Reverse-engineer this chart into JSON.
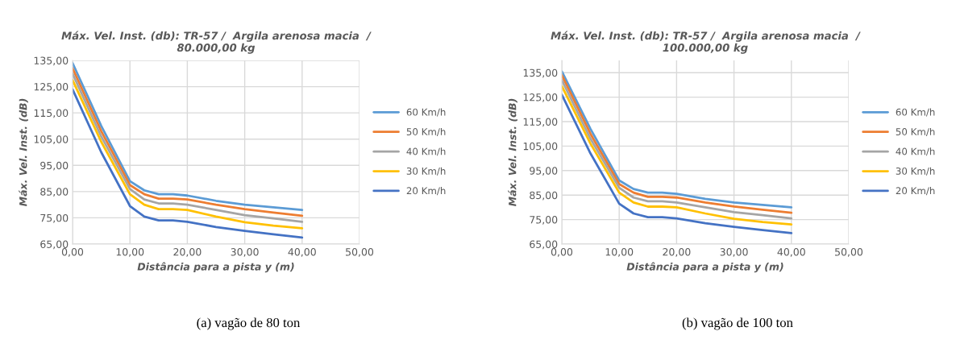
{
  "chart_data": [
    {
      "type": "line",
      "title": "Máx. Vel. Inst. (db): TR-57 /  Argila arenosa macia  /\n80.000,00 kg",
      "xlabel": "Distância para a pista y (m)",
      "ylabel": "Máx. Vel. Inst. (dB)",
      "x": [
        0,
        5,
        10,
        12.5,
        15,
        17.5,
        20,
        25,
        30,
        35,
        40
      ],
      "series": [
        {
          "name": "60 Km/h",
          "color": "#5b9bd5",
          "values": [
            134,
            110,
            89,
            85.5,
            84,
            84,
            83.5,
            81.5,
            80,
            79,
            78
          ]
        },
        {
          "name": "50 Km/h",
          "color": "#ed7d31",
          "values": [
            132,
            108,
            87.5,
            84,
            82.3,
            82.3,
            82,
            80,
            78.3,
            77,
            75.8
          ]
        },
        {
          "name": "40 Km/h",
          "color": "#a5a5a5",
          "values": [
            130,
            106,
            86,
            82,
            80.5,
            80.5,
            80,
            78,
            76,
            74.8,
            73.5
          ]
        },
        {
          "name": "30 Km/h",
          "color": "#ffc000",
          "values": [
            127.5,
            104,
            84,
            80,
            78.3,
            78.3,
            78,
            75.5,
            73.3,
            72,
            71
          ]
        },
        {
          "name": "20 Km/h",
          "color": "#4472c4",
          "values": [
            124,
            100,
            79.5,
            75.5,
            74,
            74,
            73.5,
            71.5,
            70,
            68.7,
            67.5
          ]
        }
      ],
      "xlim": [
        0,
        50
      ],
      "xticks": [
        {
          "value": 0,
          "label": "0,00"
        },
        {
          "value": 10,
          "label": "10,00"
        },
        {
          "value": 20,
          "label": "20,00"
        },
        {
          "value": 30,
          "label": "30,00"
        },
        {
          "value": 40,
          "label": "40,00"
        },
        {
          "value": 50,
          "label": "50,00"
        }
      ],
      "ylim": [
        65,
        135
      ],
      "yticks": [
        {
          "value": 65,
          "label": "65,00"
        },
        {
          "value": 75,
          "label": "75,00"
        },
        {
          "value": 85,
          "label": "85,00"
        },
        {
          "value": 95,
          "label": "95,00"
        },
        {
          "value": 105,
          "label": "105,00"
        },
        {
          "value": 115,
          "label": "115,00"
        },
        {
          "value": 125,
          "label": "125,00"
        },
        {
          "value": 135,
          "label": "135,00"
        }
      ],
      "grid": true,
      "legend": "right",
      "marker": "none",
      "line_style": "solid",
      "annotations": [
        "(a) vagão de 80 ton"
      ]
    },
    {
      "type": "line",
      "title": "Máx. Vel. Inst. (db): TR-57 /  Argila arenosa macia  /\n100.000,00 kg",
      "xlabel": "Distância para a pista y (m)",
      "ylabel": "Máx. Vel. Inst. (dB)",
      "x": [
        0,
        5,
        10,
        12.5,
        15,
        17.5,
        20,
        25,
        30,
        35,
        40
      ],
      "series": [
        {
          "name": "60 Km/h",
          "color": "#5b9bd5",
          "values": [
            135.5,
            112,
            91,
            87.5,
            86,
            86,
            85.5,
            83.5,
            82,
            81,
            80
          ]
        },
        {
          "name": "50 Km/h",
          "color": "#ed7d31",
          "values": [
            134,
            110,
            89.5,
            86,
            84.3,
            84.3,
            84,
            82,
            80.3,
            79,
            77.8
          ]
        },
        {
          "name": "40 Km/h",
          "color": "#a5a5a5",
          "values": [
            132,
            108,
            88,
            84,
            82.5,
            82.5,
            82,
            80,
            78,
            76.8,
            75.5
          ]
        },
        {
          "name": "30 Km/h",
          "color": "#ffc000",
          "values": [
            129.5,
            106,
            86,
            82,
            80.3,
            80.3,
            80,
            77.5,
            75.3,
            74,
            73
          ]
        },
        {
          "name": "20 Km/h",
          "color": "#4472c4",
          "values": [
            126,
            102,
            81.5,
            77.5,
            76,
            76,
            75.5,
            73.5,
            72,
            70.7,
            69.5
          ]
        }
      ],
      "xlim": [
        0,
        50
      ],
      "xticks": [
        {
          "value": 0,
          "label": "0,00"
        },
        {
          "value": 10,
          "label": "10,00"
        },
        {
          "value": 20,
          "label": "20,00"
        },
        {
          "value": 30,
          "label": "30,00"
        },
        {
          "value": 40,
          "label": "40,00"
        },
        {
          "value": 50,
          "label": "50,00"
        }
      ],
      "ylim": [
        65,
        140
      ],
      "yticks": [
        {
          "value": 65,
          "label": "65,00"
        },
        {
          "value": 75,
          "label": "75,00"
        },
        {
          "value": 85,
          "label": "85,00"
        },
        {
          "value": 95,
          "label": "95,00"
        },
        {
          "value": 105,
          "label": "105,00"
        },
        {
          "value": 115,
          "label": "115,00"
        },
        {
          "value": 125,
          "label": "125,00"
        },
        {
          "value": 135,
          "label": "135,00"
        }
      ],
      "grid": true,
      "legend": "right",
      "marker": "none",
      "line_style": "solid",
      "annotations": [
        "(b) vagão de 100 ton"
      ]
    }
  ]
}
